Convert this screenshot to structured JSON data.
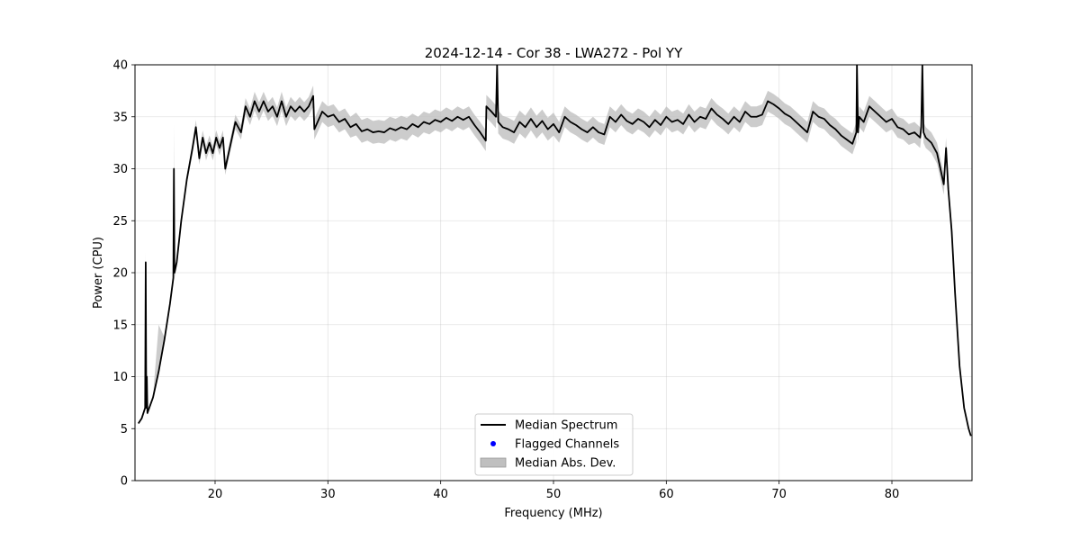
{
  "chart_data": {
    "type": "line",
    "title": "2024-12-14 - Cor 38 - LWA272 - Pol YY",
    "xlabel": "Frequency (MHz)",
    "ylabel": "Power (CPU)",
    "xlim": [
      12.9,
      87.1
    ],
    "ylim": [
      0,
      40
    ],
    "xticks": [
      20,
      30,
      40,
      50,
      60,
      70,
      80
    ],
    "yticks": [
      0,
      5,
      10,
      15,
      20,
      25,
      30,
      35,
      40
    ],
    "grid": true,
    "legend_position": "lower center",
    "legend": [
      {
        "label": "Median Spectrum",
        "kind": "line",
        "color": "#000000"
      },
      {
        "label": "Flagged Channels",
        "kind": "marker",
        "color": "#0000ff"
      },
      {
        "label": "Median Abs. Dev.",
        "kind": "band",
        "color": "#bfbfbf"
      }
    ],
    "series": [
      {
        "name": "Median Spectrum",
        "color": "#000000",
        "x": [
          13.2,
          13.5,
          13.8,
          13.85,
          13.9,
          13.95,
          14.0,
          14.5,
          15.0,
          15.5,
          16.0,
          16.3,
          16.35,
          16.4,
          16.6,
          17.0,
          17.5,
          18.0,
          18.3,
          18.6,
          18.9,
          19.2,
          19.5,
          19.8,
          20.1,
          20.4,
          20.7,
          20.9,
          21.3,
          21.8,
          22.3,
          22.7,
          23.1,
          23.5,
          23.9,
          24.3,
          24.7,
          25.1,
          25.5,
          25.9,
          26.3,
          26.7,
          27.1,
          27.5,
          27.9,
          28.3,
          28.7,
          28.8,
          29.5,
          30.0,
          30.5,
          31.0,
          31.5,
          32.0,
          32.5,
          33.0,
          33.5,
          34.0,
          34.5,
          35.0,
          35.5,
          36.0,
          36.5,
          37.0,
          37.5,
          38.0,
          38.5,
          39.0,
          39.5,
          40.0,
          40.5,
          41.0,
          41.5,
          42.0,
          42.5,
          43.0,
          43.5,
          44.0,
          44.05,
          44.5,
          44.9,
          45.0,
          45.1,
          45.5,
          46.0,
          46.5,
          47.0,
          47.5,
          48.0,
          48.5,
          49.0,
          49.5,
          50.0,
          50.5,
          51.0,
          51.5,
          52.0,
          52.5,
          53.0,
          53.5,
          54.0,
          54.5,
          55.0,
          55.5,
          56.0,
          56.5,
          57.0,
          57.5,
          58.0,
          58.5,
          59.0,
          59.5,
          60.0,
          60.5,
          61.0,
          61.5,
          62.0,
          62.5,
          63.0,
          63.5,
          64.0,
          64.5,
          65.0,
          65.5,
          66.0,
          66.5,
          67.0,
          67.5,
          68.0,
          68.5,
          69.0,
          69.5,
          70.0,
          70.5,
          71.0,
          71.5,
          72.0,
          72.5,
          73.0,
          73.5,
          74.0,
          74.5,
          75.0,
          75.5,
          76.0,
          76.5,
          76.85,
          76.9,
          77.0,
          77.1,
          77.5,
          78.0,
          78.5,
          79.0,
          79.5,
          80.0,
          80.5,
          81.0,
          81.5,
          82.0,
          82.5,
          82.6,
          82.7,
          82.8,
          83.0,
          83.5,
          84.0,
          84.3,
          84.5,
          84.6,
          84.8,
          85.0,
          85.3,
          85.6,
          86.0,
          86.4,
          86.8,
          87.0
        ],
        "y": [
          5.5,
          6.0,
          7.0,
          21.0,
          7.0,
          10.0,
          6.5,
          8.0,
          10.5,
          13.5,
          17.0,
          19.5,
          30.0,
          20.0,
          21.0,
          25.0,
          29.0,
          32.0,
          34.0,
          31.0,
          33.0,
          31.5,
          32.5,
          31.5,
          33.0,
          32.0,
          33.0,
          30.0,
          32.0,
          34.5,
          33.5,
          36.0,
          35.0,
          36.5,
          35.5,
          36.5,
          35.5,
          36.0,
          35.0,
          36.5,
          35.0,
          36.0,
          35.5,
          36.0,
          35.5,
          36.0,
          37.0,
          33.8,
          35.5,
          35.0,
          35.2,
          34.5,
          34.8,
          34.0,
          34.3,
          33.6,
          33.8,
          33.5,
          33.6,
          33.5,
          33.9,
          33.7,
          34.0,
          33.8,
          34.3,
          34.0,
          34.5,
          34.3,
          34.7,
          34.5,
          34.9,
          34.6,
          35.0,
          34.7,
          35.0,
          34.2,
          33.5,
          32.7,
          36.0,
          35.5,
          35.0,
          40.0,
          34.5,
          34.0,
          33.8,
          33.5,
          34.5,
          34.0,
          34.8,
          34.0,
          34.6,
          33.8,
          34.3,
          33.5,
          35.0,
          34.5,
          34.2,
          33.8,
          33.5,
          34.0,
          33.5,
          33.3,
          35.0,
          34.5,
          35.2,
          34.6,
          34.3,
          34.8,
          34.5,
          34.0,
          34.7,
          34.2,
          35.0,
          34.5,
          34.7,
          34.3,
          35.2,
          34.5,
          35.0,
          34.8,
          35.8,
          35.2,
          34.8,
          34.3,
          35.0,
          34.5,
          35.5,
          35.0,
          35.0,
          35.2,
          36.5,
          36.2,
          35.8,
          35.3,
          35.0,
          34.5,
          34.0,
          33.5,
          35.5,
          35.0,
          34.8,
          34.2,
          33.8,
          33.2,
          32.8,
          32.4,
          33.5,
          40.0,
          33.5,
          35.0,
          34.5,
          36.0,
          35.5,
          35.0,
          34.5,
          34.8,
          34.0,
          33.8,
          33.3,
          33.5,
          33.0,
          34.0,
          40.0,
          33.5,
          33.0,
          32.5,
          31.5,
          30.0,
          29.0,
          28.5,
          32.0,
          28.0,
          24.0,
          18.0,
          11.0,
          7.0,
          5.0,
          4.3
        ]
      }
    ],
    "mad_band": {
      "name": "Median Abs. Dev.",
      "color": "#bfbfbf",
      "x": [
        13.2,
        13.5,
        13.8,
        13.85,
        13.9,
        13.95,
        14.0,
        14.5,
        15.0,
        15.5,
        16.0,
        16.3,
        16.35,
        16.4,
        16.6,
        17.0,
        17.5,
        18.0,
        18.3,
        18.6,
        18.9,
        19.2,
        19.5,
        19.8,
        20.1,
        20.4,
        20.7,
        20.9,
        21.3,
        21.8,
        22.3,
        22.7,
        23.1,
        23.5,
        23.9,
        24.3,
        24.7,
        25.1,
        25.5,
        25.9,
        26.3,
        26.7,
        27.1,
        27.5,
        27.9,
        28.3,
        28.7,
        28.8,
        29.5,
        30.0,
        30.5,
        31.0,
        31.5,
        32.0,
        32.5,
        33.0,
        33.5,
        34.0,
        34.5,
        35.0,
        35.5,
        36.0,
        36.5,
        37.0,
        37.5,
        38.0,
        38.5,
        39.0,
        39.5,
        40.0,
        40.5,
        41.0,
        41.5,
        42.0,
        42.5,
        43.0,
        43.5,
        44.0,
        44.05,
        44.5,
        44.9,
        45.0,
        45.1,
        45.5,
        46.0,
        46.5,
        47.0,
        47.5,
        48.0,
        48.5,
        49.0,
        49.5,
        50.0,
        50.5,
        51.0,
        51.5,
        52.0,
        52.5,
        53.0,
        53.5,
        54.0,
        54.5,
        55.0,
        55.5,
        56.0,
        56.5,
        57.0,
        57.5,
        58.0,
        58.5,
        59.0,
        59.5,
        60.0,
        60.5,
        61.0,
        61.5,
        62.0,
        62.5,
        63.0,
        63.5,
        64.0,
        64.5,
        65.0,
        65.5,
        66.0,
        66.5,
        67.0,
        67.5,
        68.0,
        68.5,
        69.0,
        69.5,
        70.0,
        70.5,
        71.0,
        71.5,
        72.0,
        72.5,
        73.0,
        73.5,
        74.0,
        74.5,
        75.0,
        75.5,
        76.0,
        76.5,
        76.85,
        76.9,
        77.0,
        77.1,
        77.5,
        78.0,
        78.5,
        79.0,
        79.5,
        80.0,
        80.5,
        81.0,
        81.5,
        82.0,
        82.5,
        82.6,
        82.7,
        82.8,
        83.0,
        83.5,
        84.0,
        84.3,
        84.5,
        84.6,
        84.8,
        85.0,
        85.3,
        85.6,
        86.0,
        86.4,
        86.8,
        87.0
      ],
      "lower": [
        5.4,
        5.9,
        6.8,
        20.0,
        6.8,
        9.5,
        6.3,
        7.8,
        10.2,
        13.2,
        16.6,
        19.1,
        28.5,
        19.5,
        20.6,
        24.6,
        28.6,
        31.4,
        33.3,
        30.4,
        32.3,
        30.8,
        31.8,
        30.8,
        32.3,
        31.3,
        32.3,
        29.4,
        31.4,
        33.8,
        32.8,
        35.2,
        34.2,
        35.6,
        34.6,
        35.6,
        34.6,
        35.1,
        34.1,
        35.6,
        34.1,
        35.1,
        34.6,
        35.1,
        34.6,
        35.1,
        36.0,
        32.8,
        34.5,
        34.0,
        34.2,
        33.5,
        33.8,
        33.0,
        33.2,
        32.5,
        32.7,
        32.4,
        32.5,
        32.4,
        32.8,
        32.6,
        32.9,
        32.7,
        33.3,
        33.0,
        33.5,
        33.3,
        33.7,
        33.5,
        33.9,
        33.6,
        34.0,
        33.7,
        34.0,
        33.2,
        32.5,
        31.7,
        34.9,
        34.4,
        33.9,
        38.0,
        33.4,
        32.9,
        32.7,
        32.4,
        33.4,
        32.9,
        33.7,
        32.9,
        33.5,
        32.7,
        33.2,
        32.5,
        34.0,
        33.5,
        33.2,
        32.8,
        32.5,
        33.0,
        32.5,
        32.3,
        34.0,
        33.5,
        34.2,
        33.6,
        33.3,
        33.8,
        33.5,
        33.0,
        33.7,
        33.2,
        34.0,
        33.5,
        33.7,
        33.3,
        34.2,
        33.5,
        34.0,
        33.8,
        34.8,
        34.2,
        33.8,
        33.3,
        34.0,
        33.5,
        34.5,
        34.0,
        34.0,
        34.2,
        35.5,
        35.2,
        34.8,
        34.3,
        34.0,
        33.5,
        33.0,
        32.5,
        34.5,
        34.0,
        33.8,
        33.2,
        32.8,
        32.2,
        31.8,
        31.4,
        32.5,
        38.0,
        32.5,
        34.0,
        33.5,
        35.0,
        34.5,
        34.0,
        33.5,
        33.8,
        33.0,
        32.8,
        32.3,
        32.5,
        32.0,
        33.0,
        38.0,
        32.5,
        32.0,
        31.5,
        30.5,
        29.0,
        28.0,
        27.5,
        31.0,
        27.5,
        23.6,
        17.7,
        10.8,
        6.9,
        4.9,
        4.2
      ],
      "upper": [
        5.6,
        6.1,
        7.2,
        22.0,
        12.5,
        10.5,
        6.7,
        8.2,
        15.0,
        13.8,
        17.4,
        19.9,
        34.3,
        20.5,
        21.4,
        25.4,
        29.4,
        32.6,
        34.7,
        31.6,
        33.7,
        32.2,
        33.2,
        32.2,
        33.7,
        32.7,
        33.7,
        30.6,
        32.6,
        35.2,
        34.2,
        36.8,
        35.8,
        37.4,
        36.4,
        37.4,
        36.4,
        36.9,
        35.9,
        37.4,
        35.9,
        36.9,
        36.4,
        36.9,
        36.4,
        36.9,
        38.0,
        34.8,
        36.5,
        36.0,
        36.2,
        35.5,
        35.8,
        35.0,
        35.4,
        34.7,
        34.9,
        34.6,
        34.7,
        34.6,
        35.0,
        34.8,
        35.1,
        34.9,
        35.3,
        35.0,
        35.5,
        35.3,
        35.7,
        35.5,
        35.9,
        35.6,
        36.0,
        35.7,
        36.0,
        35.2,
        34.5,
        33.7,
        37.1,
        36.6,
        36.1,
        40.0,
        35.6,
        35.1,
        34.9,
        34.6,
        35.6,
        35.1,
        35.9,
        35.1,
        35.7,
        34.9,
        35.4,
        34.5,
        36.0,
        35.5,
        35.2,
        34.8,
        34.5,
        35.0,
        34.5,
        34.3,
        36.0,
        35.5,
        36.2,
        35.6,
        35.3,
        35.8,
        35.5,
        35.0,
        35.7,
        35.2,
        36.0,
        35.5,
        35.7,
        35.3,
        36.2,
        35.5,
        36.0,
        35.8,
        36.8,
        36.2,
        35.8,
        35.3,
        36.0,
        35.5,
        36.5,
        36.0,
        36.0,
        36.2,
        37.5,
        37.2,
        36.8,
        36.3,
        36.0,
        35.5,
        35.0,
        34.5,
        36.5,
        36.0,
        35.8,
        35.2,
        34.8,
        34.2,
        33.8,
        33.4,
        34.5,
        40.0,
        34.5,
        36.0,
        35.5,
        37.0,
        36.5,
        36.0,
        35.5,
        35.8,
        35.0,
        34.8,
        34.3,
        34.5,
        34.0,
        35.0,
        40.0,
        34.5,
        34.0,
        33.5,
        32.5,
        31.0,
        30.0,
        29.5,
        33.0,
        28.5,
        24.4,
        18.3,
        11.2,
        7.1,
        5.1,
        4.4
      ]
    },
    "flagged_channels": []
  }
}
